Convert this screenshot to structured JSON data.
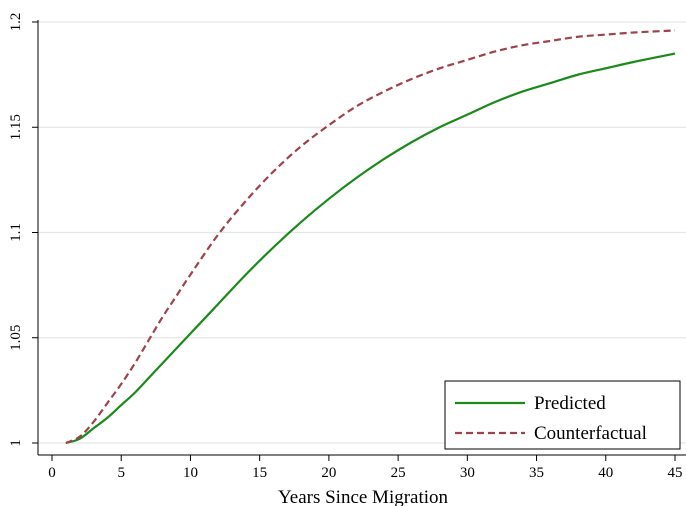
{
  "chart_data": {
    "type": "line",
    "title": "",
    "xlabel": "Years Since Migration",
    "ylabel": "",
    "xlim": [
      0,
      45
    ],
    "ylim": [
      1,
      1.2
    ],
    "x_ticks": [
      0,
      5,
      10,
      15,
      20,
      25,
      30,
      35,
      40,
      45
    ],
    "x_tick_labels": [
      "0",
      "5",
      "10",
      "15",
      "20",
      "25",
      "30",
      "35",
      "40",
      "45"
    ],
    "y_ticks": [
      1,
      1.05,
      1.1,
      1.15,
      1.2
    ],
    "y_tick_labels": [
      "1",
      "1.05",
      "1.1",
      "1.15",
      "1.2"
    ],
    "grid": true,
    "legend_position": "bottom-right",
    "x": [
      1,
      2,
      3,
      4,
      5,
      6,
      7,
      8,
      9,
      10,
      12,
      14,
      16,
      18,
      20,
      22,
      24,
      26,
      28,
      30,
      32,
      34,
      36,
      38,
      40,
      42,
      45
    ],
    "series": [
      {
        "name": "Predicted",
        "color": "#1a8a1a",
        "dash": "solid",
        "values": [
          1.0,
          1.002,
          1.007,
          1.012,
          1.018,
          1.024,
          1.031,
          1.038,
          1.045,
          1.052,
          1.066,
          1.08,
          1.093,
          1.105,
          1.116,
          1.126,
          1.135,
          1.143,
          1.15,
          1.156,
          1.162,
          1.167,
          1.171,
          1.175,
          1.178,
          1.181,
          1.185
        ]
      },
      {
        "name": "Counterfactual",
        "color": "#a0424a",
        "dash": "dashed",
        "values": [
          1.0,
          1.003,
          1.01,
          1.019,
          1.028,
          1.038,
          1.049,
          1.06,
          1.07,
          1.08,
          1.099,
          1.115,
          1.129,
          1.141,
          1.151,
          1.16,
          1.167,
          1.173,
          1.178,
          1.182,
          1.186,
          1.189,
          1.191,
          1.193,
          1.194,
          1.195,
          1.196
        ]
      }
    ]
  }
}
